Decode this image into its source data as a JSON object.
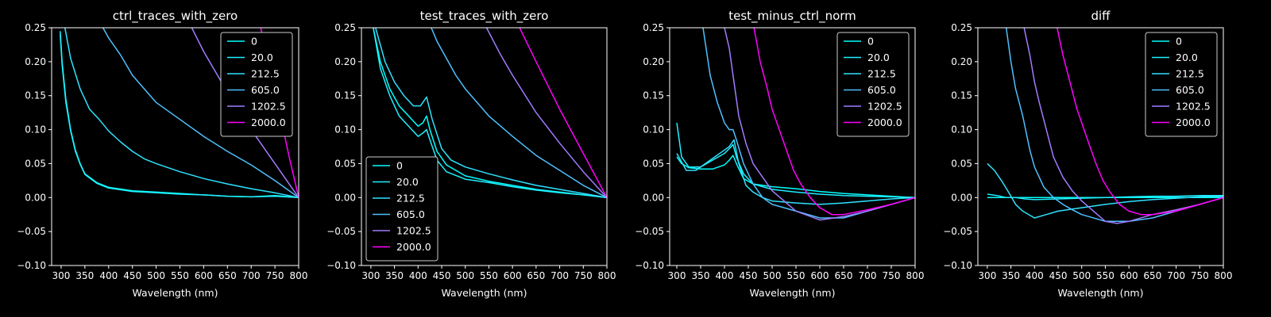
{
  "figure": {
    "background": "#000000",
    "foreground": "#ffffff"
  },
  "chart_data": [
    {
      "type": "line",
      "title": "ctrl_traces_with_zero",
      "xlabel": "Wavelength (nm)",
      "ylabel": "",
      "xlim": [
        280,
        800
      ],
      "ylim": [
        -0.1,
        0.25
      ],
      "xticks": [
        300,
        350,
        400,
        450,
        500,
        550,
        600,
        650,
        700,
        750,
        800
      ],
      "yticks": [
        -0.1,
        -0.05,
        0.0,
        0.05,
        0.1,
        0.15,
        0.2,
        0.25
      ],
      "legend_position": "top-right",
      "legend_labels": [
        "0",
        "20.0",
        "212.5",
        "605.0",
        "1202.5",
        "2000.0"
      ],
      "series": [
        {
          "name": "0",
          "color": "#00ffff",
          "x": [
            298,
            302,
            310,
            320,
            330,
            340,
            350,
            375,
            400,
            450,
            500,
            550,
            600,
            650,
            700,
            750,
            800
          ],
          "y": [
            0.245,
            0.2,
            0.145,
            0.1,
            0.07,
            0.05,
            0.035,
            0.022,
            0.015,
            0.01,
            0.008,
            0.006,
            0.004,
            0.002,
            0.001,
            0.003,
            0.0
          ]
        },
        {
          "name": "20.0",
          "color": "#1ff0ff",
          "x": [
            298,
            302,
            310,
            320,
            330,
            340,
            350,
            375,
            400,
            450,
            500,
            550,
            600,
            650,
            700,
            750,
            800
          ],
          "y": [
            0.24,
            0.195,
            0.14,
            0.098,
            0.068,
            0.049,
            0.034,
            0.021,
            0.014,
            0.009,
            0.007,
            0.005,
            0.004,
            0.002,
            0.001,
            0.002,
            0.0
          ]
        },
        {
          "name": "212.5",
          "color": "#2ee2ff",
          "x": [
            308,
            320,
            340,
            360,
            380,
            400,
            425,
            450,
            475,
            500,
            550,
            600,
            650,
            700,
            750,
            800
          ],
          "y": [
            0.25,
            0.205,
            0.16,
            0.13,
            0.115,
            0.098,
            0.082,
            0.068,
            0.057,
            0.05,
            0.038,
            0.028,
            0.02,
            0.013,
            0.007,
            0.0
          ]
        },
        {
          "name": "605.0",
          "color": "#4ec0ff",
          "x": [
            388,
            400,
            425,
            450,
            475,
            500,
            550,
            600,
            650,
            700,
            750,
            800
          ],
          "y": [
            0.25,
            0.235,
            0.21,
            0.18,
            0.16,
            0.14,
            0.115,
            0.09,
            0.068,
            0.048,
            0.025,
            0.0
          ]
        },
        {
          "name": "1202.5",
          "color": "#a07cff",
          "x": [
            575,
            600,
            650,
            700,
            750,
            800
          ],
          "y": [
            0.25,
            0.215,
            0.155,
            0.1,
            0.05,
            0.0
          ]
        },
        {
          "name": "2000.0",
          "color": "#ff00ff",
          "x": [
            720,
            740,
            760,
            780,
            800
          ],
          "y": [
            0.25,
            0.19,
            0.125,
            0.06,
            0.0
          ]
        }
      ]
    },
    {
      "type": "line",
      "title": "test_traces_with_zero",
      "xlabel": "Wavelength (nm)",
      "ylabel": "",
      "xlim": [
        280,
        800
      ],
      "ylim": [
        -0.1,
        0.25
      ],
      "xticks": [
        300,
        350,
        400,
        450,
        500,
        550,
        600,
        650,
        700,
        750,
        800
      ],
      "yticks": [
        -0.1,
        -0.05,
        0.0,
        0.05,
        0.1,
        0.15,
        0.2,
        0.25
      ],
      "legend_position": "lower-left",
      "legend_labels": [
        "0",
        "20.0",
        "212.5",
        "605.0",
        "1202.5",
        "2000.0"
      ],
      "series": [
        {
          "name": "0",
          "color": "#00ffff",
          "x": [
            305,
            320,
            340,
            360,
            380,
            400,
            410,
            418,
            425,
            440,
            460,
            500,
            550,
            600,
            650,
            700,
            750,
            800
          ],
          "y": [
            0.25,
            0.2,
            0.16,
            0.135,
            0.12,
            0.105,
            0.11,
            0.12,
            0.1,
            0.068,
            0.048,
            0.032,
            0.024,
            0.018,
            0.012,
            0.008,
            0.004,
            0.0
          ]
        },
        {
          "name": "20.0",
          "color": "#1ff0ff",
          "x": [
            305,
            320,
            340,
            360,
            380,
            400,
            410,
            418,
            425,
            440,
            460,
            500,
            550,
            600,
            650,
            700,
            750,
            800
          ],
          "y": [
            0.25,
            0.19,
            0.15,
            0.12,
            0.105,
            0.09,
            0.095,
            0.1,
            0.085,
            0.055,
            0.038,
            0.027,
            0.022,
            0.016,
            0.011,
            0.007,
            0.004,
            0.0
          ]
        },
        {
          "name": "212.5",
          "color": "#2ee2ff",
          "x": [
            310,
            330,
            350,
            370,
            390,
            405,
            418,
            430,
            450,
            470,
            500,
            550,
            600,
            650,
            700,
            750,
            800
          ],
          "y": [
            0.25,
            0.2,
            0.17,
            0.15,
            0.135,
            0.135,
            0.148,
            0.115,
            0.072,
            0.055,
            0.045,
            0.035,
            0.026,
            0.018,
            0.012,
            0.006,
            0.0
          ]
        },
        {
          "name": "605.0",
          "color": "#4ec0ff",
          "x": [
            428,
            440,
            460,
            480,
            500,
            525,
            550,
            600,
            650,
            700,
            750,
            800
          ],
          "y": [
            0.25,
            0.23,
            0.205,
            0.18,
            0.16,
            0.14,
            0.12,
            0.09,
            0.062,
            0.04,
            0.018,
            0.0
          ]
        },
        {
          "name": "1202.5",
          "color": "#a07cff",
          "x": [
            545,
            575,
            600,
            650,
            700,
            750,
            800
          ],
          "y": [
            0.25,
            0.21,
            0.18,
            0.125,
            0.08,
            0.038,
            0.0
          ]
        },
        {
          "name": "2000.0",
          "color": "#ff00ff",
          "x": [
            615,
            650,
            700,
            750,
            800
          ],
          "y": [
            0.25,
            0.2,
            0.13,
            0.065,
            0.0
          ]
        }
      ]
    },
    {
      "type": "line",
      "title": "test_minus_ctrl_norm",
      "xlabel": "Wavelength (nm)",
      "ylabel": "",
      "xlim": [
        285,
        800
      ],
      "ylim": [
        -0.1,
        0.25
      ],
      "xticks": [
        300,
        350,
        400,
        450,
        500,
        550,
        600,
        650,
        700,
        750,
        800
      ],
      "yticks": [
        -0.1,
        -0.05,
        0.0,
        0.05,
        0.1,
        0.15,
        0.2,
        0.25
      ],
      "legend_position": "top-right",
      "legend_labels": [
        "0",
        "20.0",
        "212.5",
        "605.0",
        "1202.5",
        "2000.0"
      ],
      "series": [
        {
          "name": "0",
          "color": "#00ffff",
          "x": [
            300,
            310,
            325,
            350,
            375,
            400,
            410,
            418,
            425,
            440,
            460,
            500,
            550,
            600,
            650,
            700,
            750,
            800
          ],
          "y": [
            0.06,
            0.05,
            0.044,
            0.042,
            0.042,
            0.048,
            0.055,
            0.062,
            0.05,
            0.028,
            0.02,
            0.016,
            0.013,
            0.009,
            0.006,
            0.004,
            0.002,
            0.0
          ]
        },
        {
          "name": "20.0",
          "color": "#1ff0ff",
          "x": [
            300,
            310,
            325,
            350,
            375,
            400,
            410,
            418,
            425,
            440,
            460,
            500,
            550,
            600,
            650,
            700,
            750,
            800
          ],
          "y": [
            0.11,
            0.06,
            0.045,
            0.045,
            0.055,
            0.065,
            0.072,
            0.078,
            0.06,
            0.035,
            0.02,
            0.012,
            0.008,
            0.005,
            0.003,
            0.002,
            0.001,
            0.0
          ]
        },
        {
          "name": "212.5",
          "color": "#2ee2ff",
          "x": [
            300,
            320,
            340,
            360,
            380,
            400,
            410,
            420,
            430,
            445,
            460,
            480,
            500,
            550,
            600,
            650,
            700,
            750,
            800
          ],
          "y": [
            0.065,
            0.04,
            0.04,
            0.05,
            0.06,
            0.07,
            0.075,
            0.085,
            0.05,
            0.018,
            0.008,
            0.0,
            -0.005,
            -0.008,
            -0.01,
            -0.008,
            -0.005,
            -0.002,
            0.0
          ]
        },
        {
          "name": "605.0",
          "color": "#4ec0ff",
          "x": [
            355,
            370,
            385,
            400,
            410,
            418,
            425,
            440,
            460,
            480,
            500,
            550,
            600,
            650,
            700,
            750,
            800
          ],
          "y": [
            0.25,
            0.18,
            0.14,
            0.11,
            0.1,
            0.1,
            0.085,
            0.05,
            0.02,
            0.0,
            -0.01,
            -0.02,
            -0.03,
            -0.03,
            -0.02,
            -0.01,
            0.0
          ]
        },
        {
          "name": "1202.5",
          "color": "#a07cff",
          "x": [
            400,
            410,
            420,
            430,
            445,
            460,
            480,
            500,
            550,
            600,
            650,
            700,
            750,
            800
          ],
          "y": [
            0.25,
            0.22,
            0.17,
            0.12,
            0.08,
            0.05,
            0.03,
            0.01,
            -0.02,
            -0.033,
            -0.028,
            -0.02,
            -0.01,
            0.0
          ]
        },
        {
          "name": "2000.0",
          "color": "#ff00ff",
          "x": [
            462,
            475,
            490,
            500,
            515,
            530,
            545,
            560,
            580,
            600,
            625,
            650,
            700,
            750,
            800
          ],
          "y": [
            0.25,
            0.2,
            0.16,
            0.13,
            0.1,
            0.07,
            0.04,
            0.02,
            0.0,
            -0.015,
            -0.025,
            -0.025,
            -0.018,
            -0.01,
            0.0
          ]
        }
      ]
    },
    {
      "type": "line",
      "title": "diff",
      "xlabel": "Wavelength (nm)",
      "ylabel": "",
      "xlim": [
        280,
        800
      ],
      "ylim": [
        -0.1,
        0.25
      ],
      "xticks": [
        300,
        350,
        400,
        450,
        500,
        550,
        600,
        650,
        700,
        750,
        800
      ],
      "yticks": [
        -0.1,
        -0.05,
        0.0,
        0.05,
        0.1,
        0.15,
        0.2,
        0.25
      ],
      "legend_position": "top-right",
      "legend_labels": [
        "0",
        "20.0",
        "212.5",
        "605.0",
        "1202.5",
        "2000.0"
      ],
      "series": [
        {
          "name": "0",
          "color": "#00ffff",
          "x": [
            300,
            350,
            400,
            450,
            500,
            550,
            600,
            650,
            700,
            750,
            800
          ],
          "y": [
            0.0,
            0.0,
            0.0,
            0.0,
            0.0,
            0.0,
            0.0,
            0.0,
            0.0,
            0.0,
            0.0
          ]
        },
        {
          "name": "20.0",
          "color": "#1ff0ff",
          "x": [
            300,
            320,
            340,
            360,
            380,
            400,
            450,
            500,
            550,
            600,
            650,
            700,
            750,
            800
          ],
          "y": [
            0.005,
            0.003,
            0.0,
            0.0,
            -0.002,
            -0.003,
            -0.002,
            -0.001,
            0.0,
            0.001,
            0.002,
            0.002,
            0.003,
            0.003
          ]
        },
        {
          "name": "212.5",
          "color": "#2ee2ff",
          "x": [
            300,
            315,
            330,
            345,
            360,
            375,
            400,
            425,
            450,
            500,
            550,
            600,
            650,
            700,
            750,
            800
          ],
          "y": [
            0.05,
            0.04,
            0.025,
            0.008,
            -0.01,
            -0.02,
            -0.03,
            -0.025,
            -0.02,
            -0.015,
            -0.01,
            -0.006,
            -0.003,
            -0.001,
            0.001,
            0.002
          ]
        },
        {
          "name": "605.0",
          "color": "#4ec0ff",
          "x": [
            340,
            350,
            360,
            375,
            390,
            400,
            420,
            440,
            460,
            480,
            500,
            550,
            600,
            650,
            700,
            750,
            800
          ],
          "y": [
            0.25,
            0.2,
            0.16,
            0.12,
            0.07,
            0.045,
            0.015,
            0.0,
            -0.01,
            -0.018,
            -0.025,
            -0.035,
            -0.035,
            -0.03,
            -0.02,
            -0.01,
            0.0
          ]
        },
        {
          "name": "1202.5",
          "color": "#a07cff",
          "x": [
            378,
            390,
            400,
            410,
            425,
            440,
            460,
            480,
            500,
            525,
            550,
            575,
            600,
            650,
            700,
            750,
            800
          ],
          "y": [
            0.25,
            0.21,
            0.17,
            0.14,
            0.1,
            0.06,
            0.03,
            0.01,
            -0.005,
            -0.02,
            -0.035,
            -0.038,
            -0.035,
            -0.025,
            -0.018,
            -0.01,
            0.0
          ]
        },
        {
          "name": "2000.0",
          "color": "#ff00ff",
          "x": [
            448,
            460,
            475,
            490,
            500,
            515,
            530,
            545,
            560,
            580,
            600,
            625,
            650,
            700,
            750,
            800
          ],
          "y": [
            0.25,
            0.21,
            0.17,
            0.13,
            0.11,
            0.08,
            0.05,
            0.025,
            0.008,
            -0.01,
            -0.02,
            -0.025,
            -0.025,
            -0.02,
            -0.01,
            0.0
          ]
        }
      ]
    }
  ]
}
